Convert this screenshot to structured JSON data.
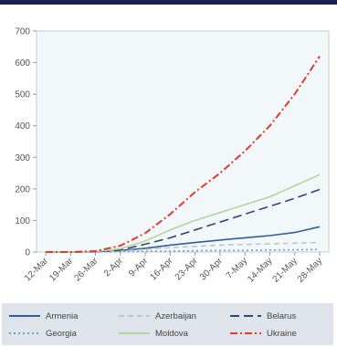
{
  "chart_data": {
    "type": "line",
    "title": "",
    "xlabel": "",
    "ylabel": "",
    "ylim": [
      0,
      700
    ],
    "yticks": [
      0,
      100,
      200,
      300,
      400,
      500,
      600,
      700
    ],
    "x": [
      "12-Mar",
      "19-Mar",
      "26-Mar",
      "2-Apr",
      "9-Apr",
      "16-Apr",
      "23-Apr",
      "30-Apr",
      "7-May",
      "14-May",
      "21-May",
      "28-May"
    ],
    "grid": false,
    "legend_position": "bottom",
    "series": [
      {
        "name": "Armenia",
        "color": "#2e5f9c",
        "dash": "solid",
        "values": [
          0,
          0,
          1,
          5,
          12,
          22,
          30,
          38,
          45,
          52,
          62,
          80
        ]
      },
      {
        "name": "Azerbaijan",
        "color": "#bcc7c9",
        "dash": "dash",
        "values": [
          0,
          0,
          1,
          3,
          8,
          14,
          18,
          22,
          24,
          26,
          28,
          30
        ]
      },
      {
        "name": "Belarus",
        "color": "#2c4a78",
        "dash": "longdash",
        "values": [
          0,
          0,
          1,
          6,
          25,
          45,
          70,
          95,
          120,
          145,
          170,
          198
        ]
      },
      {
        "name": "Georgia",
        "color": "#7a9fc9",
        "dash": "dot",
        "values": [
          0,
          0,
          0,
          1,
          2,
          3,
          4,
          5,
          5,
          6,
          7,
          8
        ]
      },
      {
        "name": "Moldova",
        "color": "#b7d39a",
        "dash": "solid",
        "values": [
          0,
          0,
          2,
          10,
          35,
          70,
          100,
          125,
          150,
          175,
          210,
          245
        ]
      },
      {
        "name": "Ukraine",
        "color": "#e5392b",
        "dash": "dashdot",
        "values": [
          0,
          0,
          3,
          20,
          60,
          120,
          190,
          250,
          320,
          400,
          500,
          620
        ]
      }
    ]
  }
}
